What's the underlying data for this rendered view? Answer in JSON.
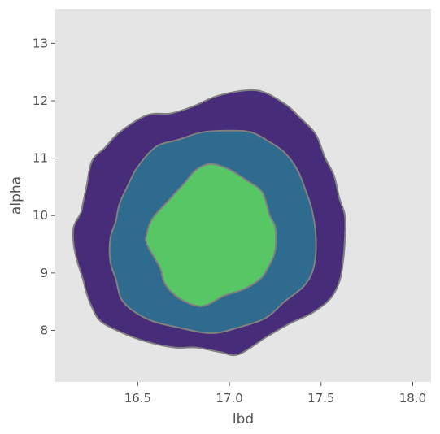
{
  "chart_data": {
    "type": "contour",
    "xlabel": "lbd",
    "ylabel": "alpha",
    "xlim": [
      16.05,
      18.1
    ],
    "ylim": [
      7.1,
      13.6
    ],
    "x_ticks": [
      16.5,
      17.0,
      17.5,
      18.0
    ],
    "x_tick_labels": [
      "16.5",
      "17.0",
      "17.5",
      "18.0"
    ],
    "y_ticks": [
      8,
      9,
      10,
      11,
      12,
      13
    ],
    "y_tick_labels": [
      "8",
      "9",
      "10",
      "11",
      "12",
      "13"
    ],
    "grid": false,
    "background_color": "#e5e5e5",
    "contour_line_color": "#808080",
    "levels": [
      {
        "name": "outer",
        "color": "#472c7a",
        "points": [
          [
            17.15,
            12.18
          ],
          [
            17.3,
            11.95
          ],
          [
            17.38,
            11.72
          ],
          [
            17.47,
            11.42
          ],
          [
            17.52,
            11.02
          ],
          [
            17.57,
            10.7
          ],
          [
            17.6,
            10.3
          ],
          [
            17.63,
            10.0
          ],
          [
            17.63,
            9.6
          ],
          [
            17.62,
            9.2
          ],
          [
            17.6,
            8.85
          ],
          [
            17.55,
            8.55
          ],
          [
            17.45,
            8.3
          ],
          [
            17.33,
            8.12
          ],
          [
            17.2,
            7.88
          ],
          [
            17.05,
            7.58
          ],
          [
            16.95,
            7.62
          ],
          [
            16.82,
            7.7
          ],
          [
            16.7,
            7.7
          ],
          [
            16.55,
            7.8
          ],
          [
            16.42,
            7.95
          ],
          [
            16.3,
            8.15
          ],
          [
            16.25,
            8.4
          ],
          [
            16.22,
            8.65
          ],
          [
            16.2,
            8.9
          ],
          [
            16.17,
            9.2
          ],
          [
            16.15,
            9.5
          ],
          [
            16.15,
            9.8
          ],
          [
            16.19,
            10.05
          ],
          [
            16.2,
            10.2
          ],
          [
            16.22,
            10.5
          ],
          [
            16.25,
            10.95
          ],
          [
            16.32,
            11.18
          ],
          [
            16.4,
            11.45
          ],
          [
            16.55,
            11.75
          ],
          [
            16.68,
            11.78
          ],
          [
            16.8,
            11.9
          ],
          [
            16.95,
            12.1
          ]
        ]
      },
      {
        "name": "middle",
        "color": "#2e6b8e",
        "points": [
          [
            17.0,
            11.48
          ],
          [
            17.12,
            11.45
          ],
          [
            17.22,
            11.28
          ],
          [
            17.3,
            11.1
          ],
          [
            17.37,
            10.8
          ],
          [
            17.42,
            10.4
          ],
          [
            17.45,
            10.1
          ],
          [
            17.47,
            9.7
          ],
          [
            17.47,
            9.3
          ],
          [
            17.45,
            9.0
          ],
          [
            17.4,
            8.75
          ],
          [
            17.3,
            8.5
          ],
          [
            17.2,
            8.22
          ],
          [
            17.05,
            8.05
          ],
          [
            16.9,
            7.95
          ],
          [
            16.72,
            8.05
          ],
          [
            16.55,
            8.2
          ],
          [
            16.42,
            8.5
          ],
          [
            16.38,
            8.9
          ],
          [
            16.35,
            9.2
          ],
          [
            16.35,
            9.6
          ],
          [
            16.38,
            9.9
          ],
          [
            16.4,
            10.2
          ],
          [
            16.45,
            10.55
          ],
          [
            16.5,
            10.85
          ],
          [
            16.6,
            11.2
          ],
          [
            16.72,
            11.32
          ],
          [
            16.85,
            11.45
          ]
        ]
      },
      {
        "name": "inner",
        "color": "#57c766",
        "points": [
          [
            16.9,
            10.9
          ],
          [
            17.0,
            10.8
          ],
          [
            17.1,
            10.6
          ],
          [
            17.18,
            10.4
          ],
          [
            17.22,
            10.0
          ],
          [
            17.25,
            9.8
          ],
          [
            17.25,
            9.4
          ],
          [
            17.22,
            9.15
          ],
          [
            17.17,
            8.9
          ],
          [
            17.08,
            8.72
          ],
          [
            16.97,
            8.6
          ],
          [
            16.85,
            8.42
          ],
          [
            16.73,
            8.55
          ],
          [
            16.65,
            8.8
          ],
          [
            16.62,
            9.1
          ],
          [
            16.55,
            9.5
          ],
          [
            16.55,
            9.7
          ],
          [
            16.58,
            9.95
          ],
          [
            16.65,
            10.2
          ],
          [
            16.75,
            10.55
          ],
          [
            16.82,
            10.8
          ]
        ]
      }
    ]
  }
}
